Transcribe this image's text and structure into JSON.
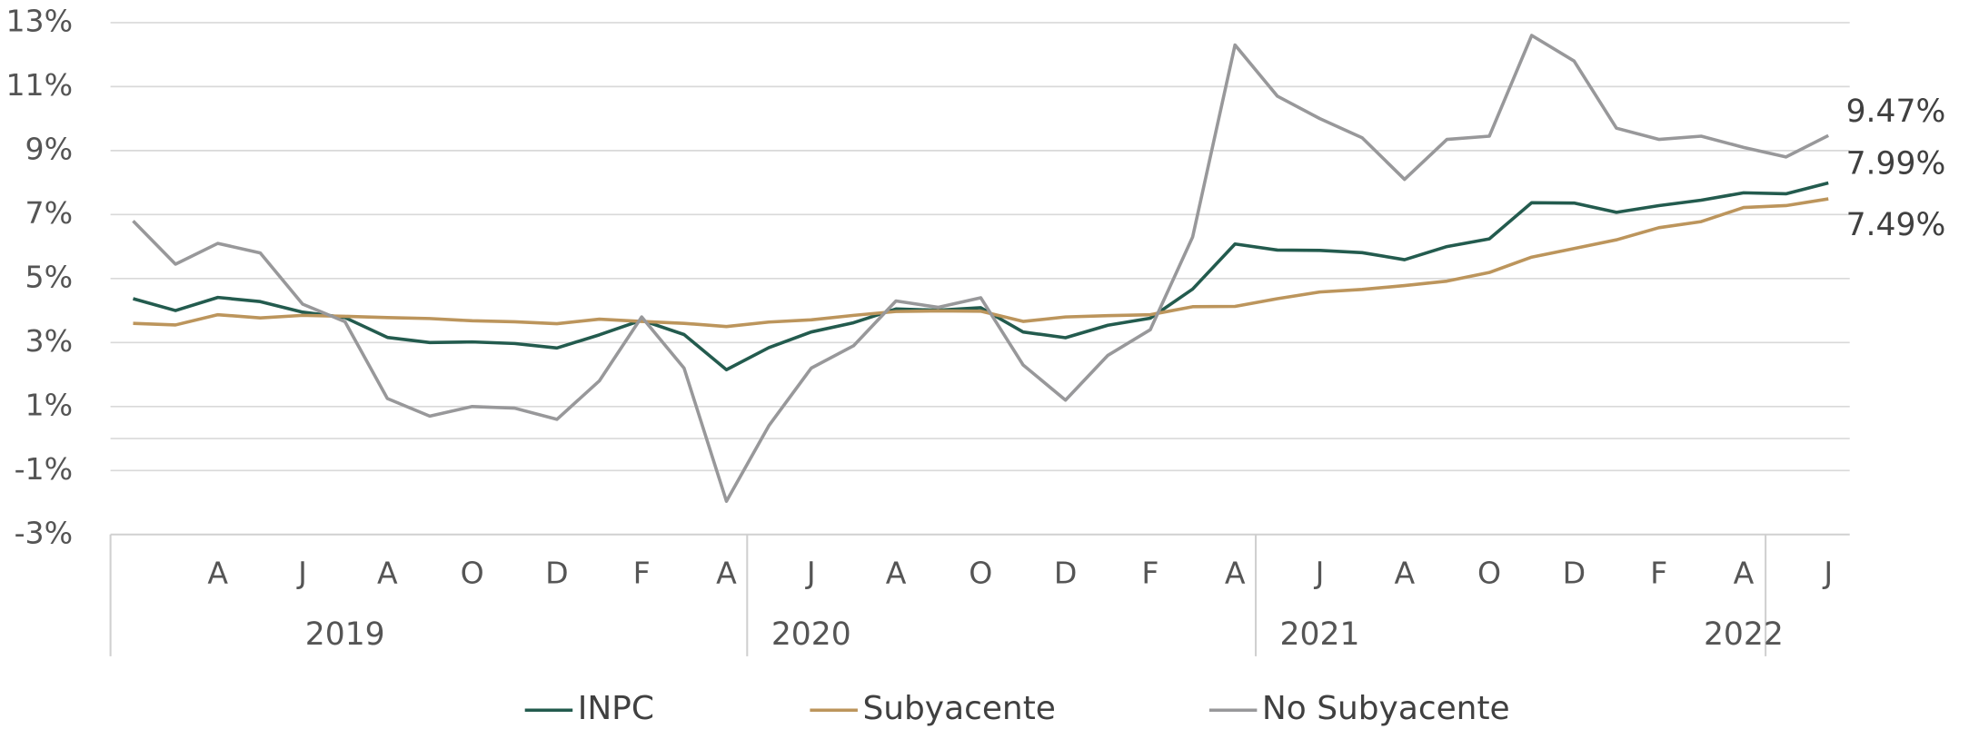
{
  "chart_data": {
    "type": "line",
    "categories": [
      null,
      null,
      "A",
      null,
      "J",
      null,
      "A",
      null,
      "O",
      null,
      "D",
      null,
      "F",
      null,
      "A",
      null,
      "J",
      null,
      "A",
      null,
      "O",
      null,
      "D",
      null,
      "F",
      null,
      "A",
      null,
      "J",
      null,
      "A",
      null,
      "O",
      null,
      "D",
      null,
      "F",
      null,
      "A",
      null,
      "J"
    ],
    "year_labels": [
      null,
      null,
      null,
      null,
      null,
      "2019",
      null,
      null,
      null,
      null,
      null,
      null,
      null,
      null,
      null,
      null,
      "2020",
      null,
      null,
      null,
      null,
      null,
      null,
      null,
      null,
      null,
      null,
      null,
      "2021",
      null,
      null,
      null,
      null,
      null,
      null,
      null,
      null,
      null,
      "2022",
      null,
      null
    ],
    "series": [
      {
        "name": "INPC",
        "color": "#235b4e",
        "values": [
          4.37,
          4.0,
          4.41,
          4.28,
          3.95,
          3.78,
          3.16,
          3.0,
          3.02,
          2.97,
          2.83,
          3.24,
          3.7,
          3.25,
          2.15,
          2.84,
          3.33,
          3.62,
          4.05,
          4.01,
          4.09,
          3.33,
          3.15,
          3.54,
          3.76,
          4.67,
          6.08,
          5.89,
          5.88,
          5.81,
          5.59,
          6.0,
          6.24,
          7.37,
          7.36,
          7.07,
          7.28,
          7.45,
          7.68,
          7.65,
          7.99
        ],
        "value_labels": [
          null,
          null,
          null,
          null,
          null,
          null,
          null,
          null,
          null,
          null,
          null,
          null,
          null,
          null,
          null,
          null,
          null,
          null,
          null,
          null,
          null,
          null,
          null,
          null,
          null,
          null,
          null,
          null,
          null,
          null,
          null,
          null,
          null,
          null,
          null,
          null,
          null,
          null,
          null,
          null,
          "7.99%"
        ]
      },
      {
        "name": "Subyacente",
        "color": "#bc955c",
        "values": [
          3.6,
          3.55,
          3.87,
          3.77,
          3.85,
          3.82,
          3.78,
          3.75,
          3.68,
          3.65,
          3.59,
          3.73,
          3.66,
          3.6,
          3.5,
          3.64,
          3.71,
          3.85,
          3.97,
          3.99,
          3.98,
          3.66,
          3.8,
          3.84,
          3.87,
          4.12,
          4.13,
          4.37,
          4.58,
          4.66,
          4.78,
          4.92,
          5.19,
          5.67,
          5.94,
          6.21,
          6.59,
          6.78,
          7.22,
          7.28,
          7.49
        ],
        "value_labels": [
          null,
          null,
          null,
          null,
          null,
          null,
          null,
          null,
          null,
          null,
          null,
          null,
          null,
          null,
          null,
          null,
          null,
          null,
          null,
          null,
          null,
          null,
          null,
          null,
          null,
          null,
          null,
          null,
          null,
          null,
          null,
          null,
          null,
          null,
          null,
          null,
          null,
          null,
          null,
          null,
          "7.49%"
        ]
      },
      {
        "name": "No Subyacente",
        "color": "#98989a",
        "values": [
          6.8,
          5.45,
          6.1,
          5.8,
          4.2,
          3.65,
          1.25,
          0.7,
          1.0,
          0.95,
          0.6,
          1.8,
          3.8,
          2.2,
          -1.96,
          0.4,
          2.2,
          2.9,
          4.3,
          4.1,
          4.4,
          2.3,
          1.2,
          2.6,
          3.4,
          6.3,
          12.3,
          10.7,
          10.0,
          9.4,
          8.1,
          9.35,
          9.45,
          12.6,
          11.8,
          9.7,
          9.35,
          9.45,
          9.1,
          8.8,
          9.47
        ],
        "value_labels": [
          null,
          null,
          null,
          null,
          null,
          null,
          null,
          null,
          null,
          null,
          null,
          null,
          null,
          null,
          null,
          null,
          null,
          null,
          null,
          null,
          null,
          null,
          null,
          null,
          null,
          null,
          null,
          null,
          null,
          null,
          null,
          null,
          null,
          null,
          null,
          null,
          null,
          null,
          null,
          null,
          "9.47%"
        ]
      }
    ],
    "ylim": [
      -3,
      13
    ],
    "yticks": [
      {
        "value": -3,
        "label": "-3%"
      },
      {
        "value": -1,
        "label": "-1%"
      },
      {
        "value": 1,
        "label": "1%"
      },
      {
        "value": 3,
        "label": "3%"
      },
      {
        "value": 5,
        "label": "5%"
      },
      {
        "value": 7,
        "label": "7%"
      },
      {
        "value": 9,
        "label": "9%"
      },
      {
        "value": 11,
        "label": "11%"
      },
      {
        "value": 13,
        "label": "13%"
      }
    ],
    "grid": true,
    "legend": "bottom"
  }
}
